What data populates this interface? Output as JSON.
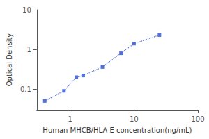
{
  "chart_data": {
    "type": "line",
    "x": [
      0.4,
      0.8,
      1.25,
      1.6,
      3.2,
      6.25,
      10,
      25
    ],
    "values": [
      0.05,
      0.09,
      0.2,
      0.22,
      0.36,
      0.8,
      1.4,
      2.3
    ],
    "xlabel": "Human MHCB/HLA-E concentration(ng/mL)",
    "ylabel": "Optical Density",
    "xlim": [
      0.3,
      100
    ],
    "ylim": [
      0.03,
      10
    ],
    "xticks": [
      1,
      10,
      100
    ],
    "yticks": [
      0.1,
      1,
      10
    ],
    "log": true,
    "grid": false,
    "marker": "square",
    "line_style": "dotted"
  }
}
